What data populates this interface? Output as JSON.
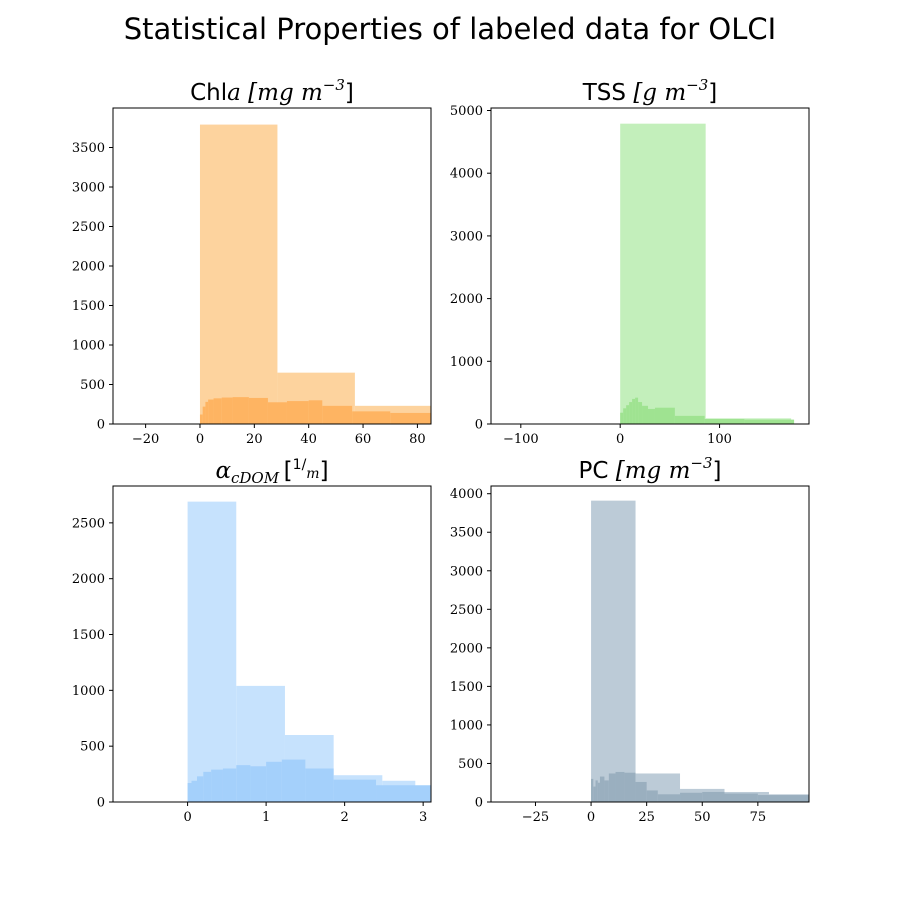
{
  "suptitle": "Statistical Properties of labeled data for OLCI",
  "chart_data": [
    {
      "type": "bar",
      "title_main": "Chl",
      "title_math": "a",
      "title_unit": "[mg m",
      "title_exp": "−3",
      "title_close": "]",
      "xlim": [
        -32,
        85
      ],
      "ylim": [
        0,
        4000
      ],
      "xticks": [
        -20,
        0,
        20,
        40,
        60,
        80
      ],
      "yticks": [
        0,
        500,
        1000,
        1500,
        2000,
        2500,
        3000,
        3500
      ],
      "coarse_color": "#fdd39e",
      "fine_color": "#feb462",
      "coarse_bins": [
        {
          "x0": 0,
          "x1": 28.5,
          "y": 3790
        },
        {
          "x0": 28.5,
          "x1": 57,
          "y": 650
        },
        {
          "x0": 57,
          "x1": 85,
          "y": 230
        }
      ],
      "fine_bins": [
        {
          "x0": 0,
          "x1": 1,
          "y": 120
        },
        {
          "x0": 1,
          "x1": 2,
          "y": 220
        },
        {
          "x0": 2,
          "x1": 3,
          "y": 280
        },
        {
          "x0": 3,
          "x1": 5,
          "y": 310
        },
        {
          "x0": 5,
          "x1": 8,
          "y": 325
        },
        {
          "x0": 8,
          "x1": 12,
          "y": 335
        },
        {
          "x0": 12,
          "x1": 18,
          "y": 340
        },
        {
          "x0": 18,
          "x1": 25,
          "y": 330
        },
        {
          "x0": 25,
          "x1": 32,
          "y": 275
        },
        {
          "x0": 32,
          "x1": 40,
          "y": 290
        },
        {
          "x0": 40,
          "x1": 45,
          "y": 300
        },
        {
          "x0": 45,
          "x1": 56,
          "y": 230
        },
        {
          "x0": 56,
          "x1": 70,
          "y": 160
        },
        {
          "x0": 70,
          "x1": 85,
          "y": 140
        }
      ]
    },
    {
      "type": "bar",
      "title_main": "TSS",
      "title_math": "",
      "title_unit": "[g m",
      "title_exp": "−3",
      "title_close": "]",
      "xlim": [
        -130,
        190
      ],
      "ylim": [
        0,
        5040
      ],
      "xticks": [
        -100,
        0,
        100
      ],
      "yticks": [
        0,
        1000,
        2000,
        3000,
        4000,
        5000
      ],
      "coarse_color": "#c3efbb",
      "fine_color": "#9fe391",
      "coarse_bins": [
        {
          "x0": 0,
          "x1": 86,
          "y": 4790
        },
        {
          "x0": 86,
          "x1": 172,
          "y": 90
        }
      ],
      "fine_bins": [
        {
          "x0": 0,
          "x1": 3,
          "y": 180
        },
        {
          "x0": 3,
          "x1": 6,
          "y": 250
        },
        {
          "x0": 6,
          "x1": 9,
          "y": 300
        },
        {
          "x0": 9,
          "x1": 12,
          "y": 350
        },
        {
          "x0": 12,
          "x1": 15,
          "y": 400
        },
        {
          "x0": 15,
          "x1": 18,
          "y": 420
        },
        {
          "x0": 18,
          "x1": 22,
          "y": 350
        },
        {
          "x0": 22,
          "x1": 28,
          "y": 290
        },
        {
          "x0": 28,
          "x1": 35,
          "y": 240
        },
        {
          "x0": 35,
          "x1": 55,
          "y": 260
        },
        {
          "x0": 55,
          "x1": 85,
          "y": 130
        },
        {
          "x0": 85,
          "x1": 125,
          "y": 80
        },
        {
          "x0": 125,
          "x1": 175,
          "y": 70
        }
      ]
    },
    {
      "type": "bar",
      "title_main": "",
      "title_math": "α",
      "title_sub": "cDOM",
      "title_unit": "[",
      "title_frac_num": "1",
      "title_frac_den": "m",
      "title_close": "]",
      "xlim": [
        -0.95,
        3.1
      ],
      "ylim": [
        0,
        2830
      ],
      "xticks": [
        0,
        1,
        2,
        3
      ],
      "yticks": [
        0,
        500,
        1000,
        1500,
        2000,
        2500
      ],
      "coarse_color": "#c6e2fd",
      "fine_color": "#a4d0fb",
      "coarse_bins": [
        {
          "x0": 0,
          "x1": 0.62,
          "y": 2690
        },
        {
          "x0": 0.62,
          "x1": 1.24,
          "y": 1040
        },
        {
          "x0": 1.24,
          "x1": 1.86,
          "y": 600
        },
        {
          "x0": 1.86,
          "x1": 2.48,
          "y": 240
        },
        {
          "x0": 2.48,
          "x1": 2.9,
          "y": 190
        },
        {
          "x0": 2.9,
          "x1": 3.1,
          "y": 140
        }
      ],
      "fine_bins": [
        {
          "x0": 0,
          "x1": 0.05,
          "y": 170
        },
        {
          "x0": 0.05,
          "x1": 0.12,
          "y": 190
        },
        {
          "x0": 0.12,
          "x1": 0.2,
          "y": 230
        },
        {
          "x0": 0.2,
          "x1": 0.3,
          "y": 270
        },
        {
          "x0": 0.3,
          "x1": 0.45,
          "y": 290
        },
        {
          "x0": 0.45,
          "x1": 0.62,
          "y": 300
        },
        {
          "x0": 0.62,
          "x1": 0.8,
          "y": 330
        },
        {
          "x0": 0.8,
          "x1": 1.0,
          "y": 320
        },
        {
          "x0": 1.0,
          "x1": 1.2,
          "y": 360
        },
        {
          "x0": 1.2,
          "x1": 1.5,
          "y": 380
        },
        {
          "x0": 1.5,
          "x1": 1.86,
          "y": 300
        },
        {
          "x0": 1.86,
          "x1": 2.4,
          "y": 200
        },
        {
          "x0": 2.4,
          "x1": 3.1,
          "y": 150
        }
      ]
    },
    {
      "type": "bar",
      "title_main": "PC",
      "title_math": "",
      "title_unit": "[mg m",
      "title_exp": "−3",
      "title_close": "]",
      "xlim": [
        -45,
        98
      ],
      "ylim": [
        0,
        4100
      ],
      "xticks": [
        -25,
        0,
        25,
        50,
        75
      ],
      "yticks": [
        0,
        500,
        1000,
        1500,
        2000,
        2500,
        3000,
        3500,
        4000
      ],
      "coarse_color": "#bccbd7",
      "fine_color": "#9aafbf",
      "coarse_bins": [
        {
          "x0": 0,
          "x1": 20,
          "y": 3910
        },
        {
          "x0": 20,
          "x1": 40,
          "y": 370
        },
        {
          "x0": 40,
          "x1": 60,
          "y": 170
        },
        {
          "x0": 60,
          "x1": 80,
          "y": 130
        },
        {
          "x0": 80,
          "x1": 98,
          "y": 100
        }
      ],
      "fine_bins": [
        {
          "x0": 0,
          "x1": 1,
          "y": 300
        },
        {
          "x0": 1,
          "x1": 2,
          "y": 200
        },
        {
          "x0": 2,
          "x1": 3,
          "y": 280
        },
        {
          "x0": 3,
          "x1": 4,
          "y": 250
        },
        {
          "x0": 4,
          "x1": 6,
          "y": 330
        },
        {
          "x0": 6,
          "x1": 8,
          "y": 280
        },
        {
          "x0": 8,
          "x1": 11,
          "y": 370
        },
        {
          "x0": 11,
          "x1": 15,
          "y": 390
        },
        {
          "x0": 15,
          "x1": 20,
          "y": 380
        },
        {
          "x0": 20,
          "x1": 25,
          "y": 260
        },
        {
          "x0": 25,
          "x1": 30,
          "y": 150
        },
        {
          "x0": 30,
          "x1": 40,
          "y": 100
        },
        {
          "x0": 40,
          "x1": 50,
          "y": 120
        },
        {
          "x0": 50,
          "x1": 60,
          "y": 130
        },
        {
          "x0": 60,
          "x1": 75,
          "y": 110
        },
        {
          "x0": 75,
          "x1": 98,
          "y": 90
        }
      ]
    }
  ]
}
